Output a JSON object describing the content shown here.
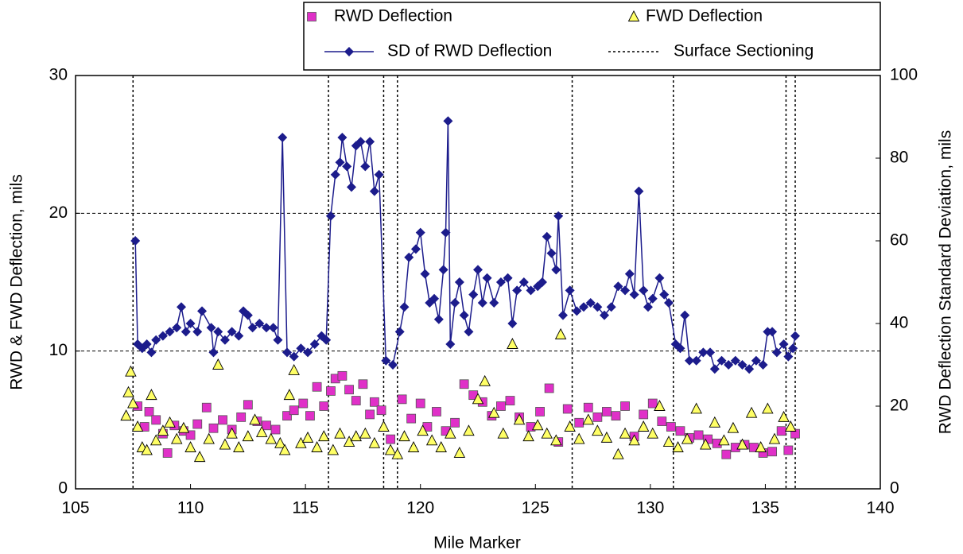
{
  "chart_data": {
    "type": "combo",
    "xlabel": "Mile Marker",
    "ylabel": "RWD & FWD Deflection, mils",
    "y2label": "RWD Deflection Standard Deviation, mils",
    "xlim": [
      105,
      140
    ],
    "xticks": [
      105,
      110,
      115,
      120,
      125,
      130,
      135,
      140
    ],
    "ylim": [
      0,
      30
    ],
    "yticks": [
      0,
      10,
      20,
      30
    ],
    "y2lim": [
      0,
      100
    ],
    "y2ticks": [
      0,
      20,
      40,
      60,
      80,
      100
    ],
    "grid": "y",
    "series": [
      {
        "name": "RWD Deflection",
        "type": "scatter",
        "marker": "square",
        "color": "#e030c8",
        "x": [
          107.7,
          108.0,
          108.2,
          108.5,
          108.8,
          109.0,
          109.3,
          109.7,
          110.0,
          110.3,
          110.7,
          111.0,
          111.4,
          111.8,
          112.2,
          112.5,
          112.9,
          113.3,
          113.7,
          114.2,
          114.5,
          114.9,
          115.2,
          115.5,
          115.8,
          116.1,
          116.3,
          116.6,
          116.9,
          117.2,
          117.5,
          117.8,
          118.0,
          118.3,
          118.7,
          119.2,
          119.6,
          120.0,
          120.3,
          120.7,
          121.1,
          121.5,
          121.9,
          122.3,
          122.7,
          123.1,
          123.5,
          123.9,
          124.3,
          124.8,
          125.2,
          125.6,
          126.0,
          126.4,
          126.9,
          127.3,
          127.7,
          128.1,
          128.5,
          128.9,
          129.3,
          129.7,
          130.1,
          130.5,
          130.9,
          131.3,
          131.7,
          132.1,
          132.5,
          132.9,
          133.3,
          133.7,
          134.1,
          134.5,
          134.9,
          135.3,
          135.7,
          136.0,
          136.3
        ],
        "values": [
          6.0,
          4.5,
          5.6,
          5.0,
          4.0,
          2.6,
          4.6,
          4.2,
          3.9,
          4.7,
          5.9,
          4.4,
          5.0,
          4.3,
          5.2,
          6.1,
          4.9,
          4.6,
          4.3,
          5.3,
          5.7,
          6.2,
          5.3,
          7.4,
          6.0,
          7.1,
          8.0,
          8.2,
          7.2,
          6.4,
          7.6,
          5.4,
          6.3,
          5.7,
          3.6,
          6.5,
          5.1,
          6.2,
          4.5,
          5.6,
          4.2,
          4.8,
          7.6,
          6.8,
          6.3,
          5.3,
          6.0,
          6.4,
          5.2,
          4.5,
          5.6,
          7.3,
          3.4,
          5.8,
          4.8,
          5.9,
          5.2,
          5.6,
          5.3,
          6.0,
          3.8,
          5.4,
          6.2,
          4.9,
          4.5,
          4.2,
          3.7,
          3.9,
          3.6,
          3.3,
          2.5,
          3.0,
          3.2,
          3.0,
          2.6,
          2.7,
          4.2,
          2.8,
          4.0
        ]
      },
      {
        "name": "FWD Deflection",
        "type": "scatter",
        "marker": "triangle",
        "color": "#ffff66",
        "x": [
          107.2,
          107.3,
          107.4,
          107.5,
          107.7,
          107.9,
          108.1,
          108.3,
          108.5,
          108.8,
          109.1,
          109.4,
          109.7,
          110.0,
          110.4,
          110.8,
          111.2,
          111.5,
          111.8,
          112.1,
          112.5,
          112.8,
          113.1,
          113.5,
          113.9,
          114.1,
          114.3,
          114.5,
          114.8,
          115.1,
          115.5,
          115.8,
          116.2,
          116.5,
          116.9,
          117.2,
          117.6,
          118.0,
          118.4,
          118.7,
          119.0,
          119.3,
          119.7,
          120.1,
          120.5,
          120.9,
          121.3,
          121.7,
          122.1,
          122.5,
          122.8,
          123.2,
          123.6,
          124.0,
          124.3,
          124.7,
          125.1,
          125.5,
          125.9,
          126.1,
          126.5,
          126.9,
          127.3,
          127.7,
          128.1,
          128.6,
          128.9,
          129.3,
          129.7,
          130.1,
          130.4,
          130.8,
          131.2,
          131.6,
          132.0,
          132.4,
          132.8,
          133.2,
          133.6,
          134.0,
          134.4,
          134.8,
          135.1,
          135.4,
          135.8,
          136.1
        ],
        "values": [
          5.3,
          7.0,
          8.5,
          6.2,
          4.5,
          3.0,
          2.8,
          6.8,
          3.5,
          4.2,
          4.8,
          3.6,
          4.4,
          3.0,
          2.3,
          3.6,
          9.0,
          3.2,
          4.0,
          3.0,
          3.8,
          5.0,
          4.1,
          3.6,
          3.3,
          2.8,
          6.8,
          8.6,
          3.3,
          3.7,
          3.0,
          3.8,
          2.8,
          4.0,
          3.4,
          3.8,
          4.0,
          3.3,
          4.5,
          2.8,
          2.5,
          3.8,
          3.0,
          4.2,
          3.5,
          3.0,
          4.0,
          2.6,
          4.2,
          6.5,
          7.8,
          5.5,
          4.0,
          10.5,
          5.0,
          3.8,
          4.6,
          4.0,
          3.5,
          11.2,
          4.5,
          3.6,
          5.0,
          4.2,
          3.7,
          2.5,
          4.0,
          3.5,
          4.5,
          4.0,
          6.0,
          3.4,
          3.0,
          3.6,
          5.8,
          3.2,
          4.8,
          3.5,
          4.4,
          3.2,
          5.5,
          3.0,
          5.8,
          3.6,
          5.2,
          4.5
        ]
      },
      {
        "name": "SD of RWD Deflection",
        "type": "line",
        "marker": "diamond",
        "color": "#1c1c8c",
        "axis": "y2",
        "x": [
          107.6,
          107.7,
          107.9,
          108.1,
          108.3,
          108.5,
          108.8,
          109.1,
          109.4,
          109.6,
          109.8,
          110.0,
          110.3,
          110.5,
          110.9,
          111.0,
          111.2,
          111.5,
          111.8,
          112.1,
          112.3,
          112.5,
          112.7,
          113.0,
          113.3,
          113.6,
          113.8,
          114.0,
          114.2,
          114.5,
          114.8,
          115.1,
          115.4,
          115.7,
          115.9,
          116.1,
          116.3,
          116.5,
          116.6,
          116.8,
          117.0,
          117.2,
          117.4,
          117.6,
          117.8,
          118.0,
          118.2,
          118.5,
          118.8,
          119.1,
          119.3,
          119.5,
          119.8,
          120.0,
          120.2,
          120.4,
          120.6,
          120.8,
          121.0,
          121.1,
          121.2,
          121.3,
          121.5,
          121.7,
          121.9,
          122.1,
          122.3,
          122.5,
          122.7,
          122.9,
          123.2,
          123.5,
          123.8,
          124.0,
          124.2,
          124.5,
          124.8,
          125.1,
          125.3,
          125.5,
          125.7,
          125.9,
          126.0,
          126.2,
          126.5,
          126.8,
          127.1,
          127.4,
          127.7,
          128.0,
          128.3,
          128.6,
          128.9,
          129.1,
          129.3,
          129.5,
          129.7,
          129.9,
          130.1,
          130.4,
          130.6,
          130.8,
          131.1,
          131.3,
          131.5,
          131.7,
          132.0,
          132.3,
          132.6,
          132.8,
          133.1,
          133.4,
          133.7,
          134.0,
          134.3,
          134.6,
          134.9,
          135.1,
          135.3,
          135.5,
          135.8,
          136.0,
          136.2,
          136.3
        ],
        "values": [
          60,
          35,
          34,
          35,
          33,
          36,
          37,
          38,
          39,
          44,
          38,
          40,
          38,
          43,
          39,
          33,
          38,
          36,
          38,
          37,
          43,
          42,
          39,
          40,
          39,
          39,
          36,
          85,
          33,
          32,
          34,
          33,
          35,
          37,
          36,
          66,
          76,
          79,
          85,
          78,
          73,
          83,
          84,
          78,
          84,
          72,
          76,
          31,
          30,
          38,
          44,
          56,
          58,
          62,
          52,
          45,
          46,
          41,
          53,
          62,
          89,
          35,
          45,
          50,
          42,
          38,
          47,
          53,
          45,
          51,
          45,
          50,
          51,
          40,
          48,
          50,
          48,
          49,
          50,
          61,
          57,
          53,
          66,
          42,
          48,
          43,
          44,
          45,
          44,
          42,
          44,
          49,
          48,
          52,
          47,
          72,
          48,
          44,
          46,
          51,
          47,
          45,
          35,
          34,
          42,
          31,
          31,
          33,
          33,
          29,
          31,
          30,
          31,
          30,
          29,
          31,
          30,
          38,
          38,
          33,
          35,
          32,
          34,
          37
        ]
      },
      {
        "name": "Surface Sectioning",
        "type": "vline",
        "color": "#000000",
        "x": [
          107.5,
          116.0,
          118.4,
          119.0,
          126.6,
          131.0,
          135.9,
          136.3
        ]
      }
    ]
  }
}
